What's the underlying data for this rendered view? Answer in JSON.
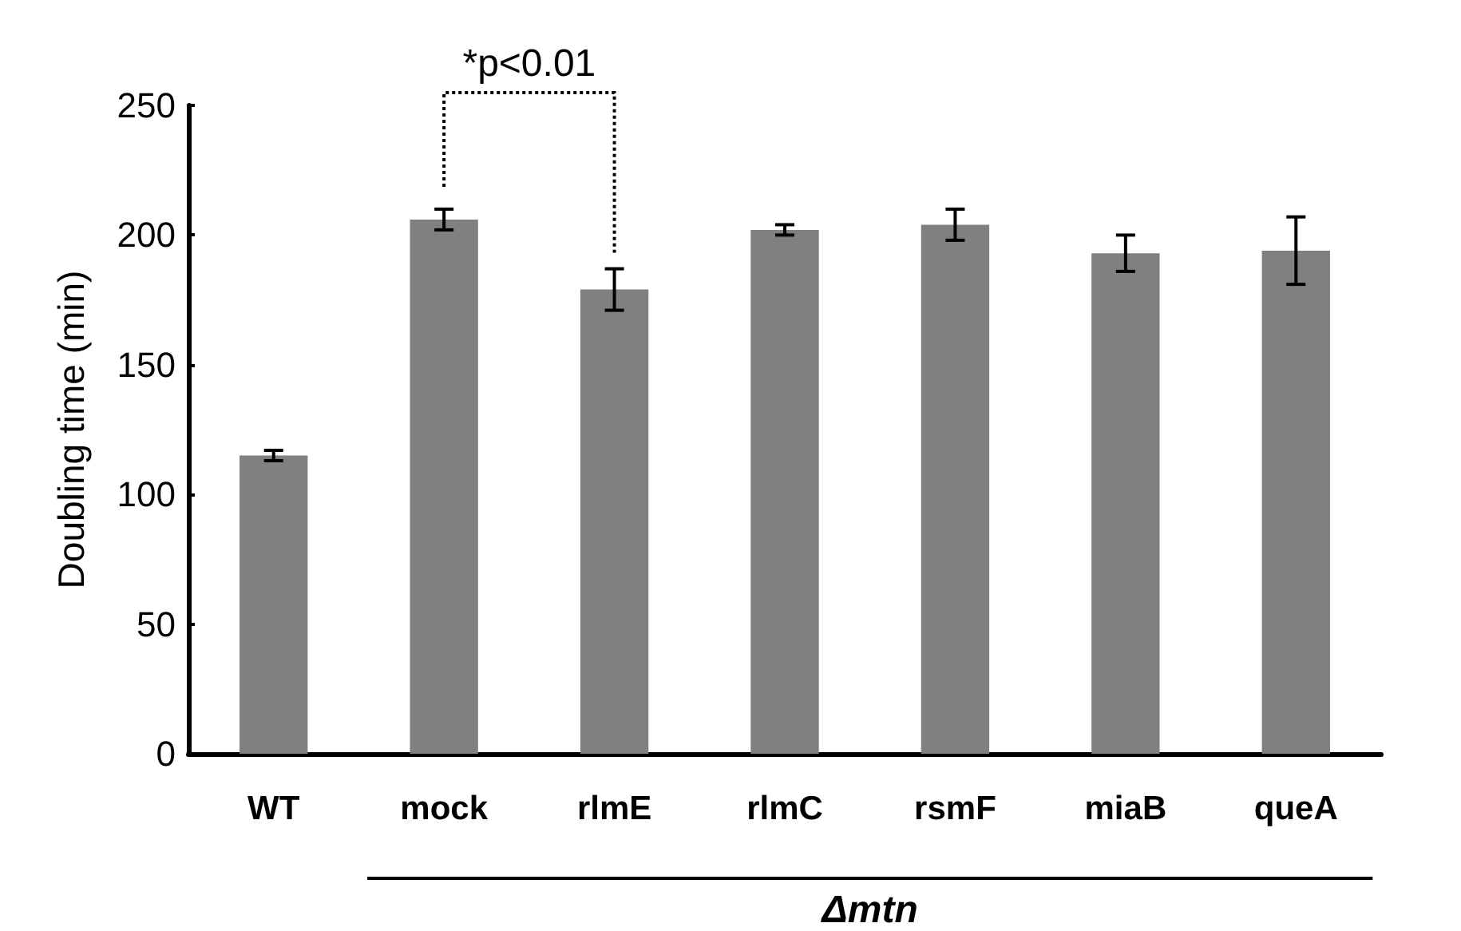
{
  "chart_data": {
    "type": "bar",
    "ylabel": "Doubling time (min)",
    "categories": [
      "WT",
      "mock",
      "rlmE",
      "rlmC",
      "rsmF",
      "miaB",
      "queA"
    ],
    "values": [
      115,
      206,
      179,
      202,
      204,
      193,
      194
    ],
    "errors": [
      2,
      4,
      8,
      2,
      6,
      7,
      13
    ],
    "color": "#808080",
    "ylim": [
      0,
      250
    ],
    "yticks": [
      0,
      50,
      100,
      150,
      200,
      250
    ],
    "annotations": [
      "*p<0.01",
      "Δmtn"
    ]
  }
}
